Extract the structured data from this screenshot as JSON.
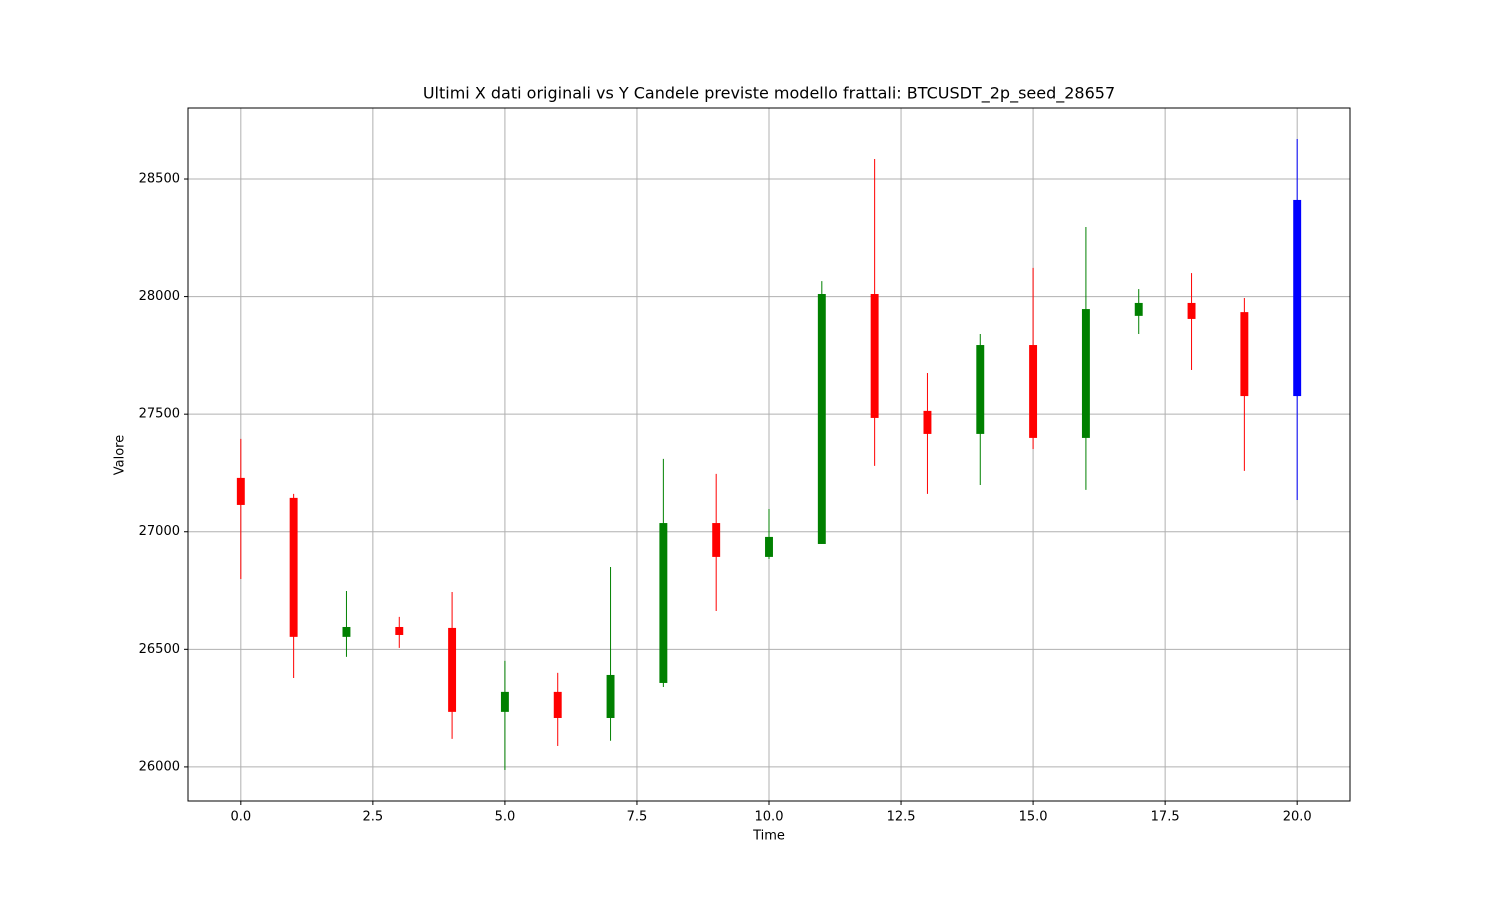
{
  "chart_data": {
    "type": "candlestick",
    "title": "Ultimi X dati originali vs Y Candele previste modello frattali: BTCUSDT_2p_seed_28657",
    "x_label": "Time",
    "y_label": "Valore",
    "x": [
      0,
      1,
      2,
      3,
      4,
      5,
      6,
      7,
      8,
      9,
      10,
      11,
      12,
      13,
      14,
      15,
      16,
      17,
      18,
      19,
      20
    ],
    "open": [
      27229,
      27144,
      26553,
      26595,
      26591,
      26234,
      26319,
      26208,
      26357,
      27037,
      26893,
      26948,
      28011,
      27514,
      27416,
      27794,
      27399,
      27918,
      27973,
      27934,
      27577
    ],
    "high": [
      27395,
      27161,
      26748,
      26638,
      26744,
      26451,
      26400,
      26850,
      27310,
      27246,
      27097,
      28066,
      28585,
      27675,
      27841,
      28122,
      28296,
      28032,
      28100,
      27994,
      28670
    ],
    "low": [
      26799,
      26378,
      26468,
      26506,
      26119,
      25987,
      26089,
      26111,
      26340,
      26663,
      26884,
      26948,
      27280,
      27161,
      27199,
      27352,
      27178,
      27841,
      27688,
      27259,
      27135
    ],
    "close": [
      27114,
      26553,
      26595,
      26561,
      26234,
      26319,
      26208,
      26391,
      27037,
      26893,
      26978,
      28011,
      27484,
      27416,
      27794,
      27399,
      27947,
      27973,
      27905,
      27577,
      28411
    ],
    "colors": [
      "red",
      "red",
      "green",
      "red",
      "red",
      "green",
      "red",
      "green",
      "green",
      "red",
      "green",
      "green",
      "red",
      "red",
      "green",
      "red",
      "green",
      "green",
      "red",
      "red",
      "blue"
    ],
    "xlim": [
      -1,
      21
    ],
    "xticks": [
      {
        "value": 0,
        "label": "0.0"
      },
      2.5,
      {
        "value": 5,
        "label": "5.0"
      },
      7.5,
      {
        "value": 10,
        "label": "10.0"
      },
      12.5,
      {
        "value": 15,
        "label": "15.0"
      },
      17.5,
      {
        "value": 20,
        "label": "20.0"
      }
    ],
    "ylim": [
      25855,
      28802
    ],
    "yticks": [
      26000,
      26500,
      27000,
      27500,
      28000,
      28500
    ],
    "grid": true
  }
}
